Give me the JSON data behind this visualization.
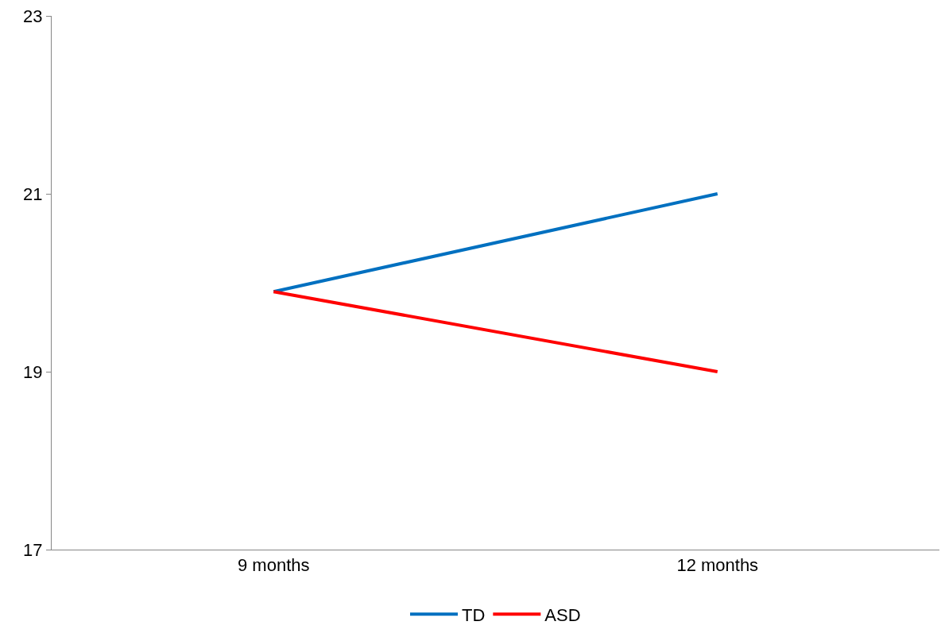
{
  "chart_data": {
    "type": "line",
    "categories": [
      "9 months",
      "12 months"
    ],
    "series": [
      {
        "name": "TD",
        "color": "#0070c0",
        "values": [
          19.9,
          21.0
        ]
      },
      {
        "name": "ASD",
        "color": "#ff0000",
        "values": [
          19.9,
          19.0
        ]
      }
    ],
    "ylim": [
      17,
      23
    ],
    "yticks": [
      17,
      19,
      21,
      23
    ],
    "grid": false,
    "legend": "bottom",
    "marker": "none",
    "line_style": "solid"
  }
}
